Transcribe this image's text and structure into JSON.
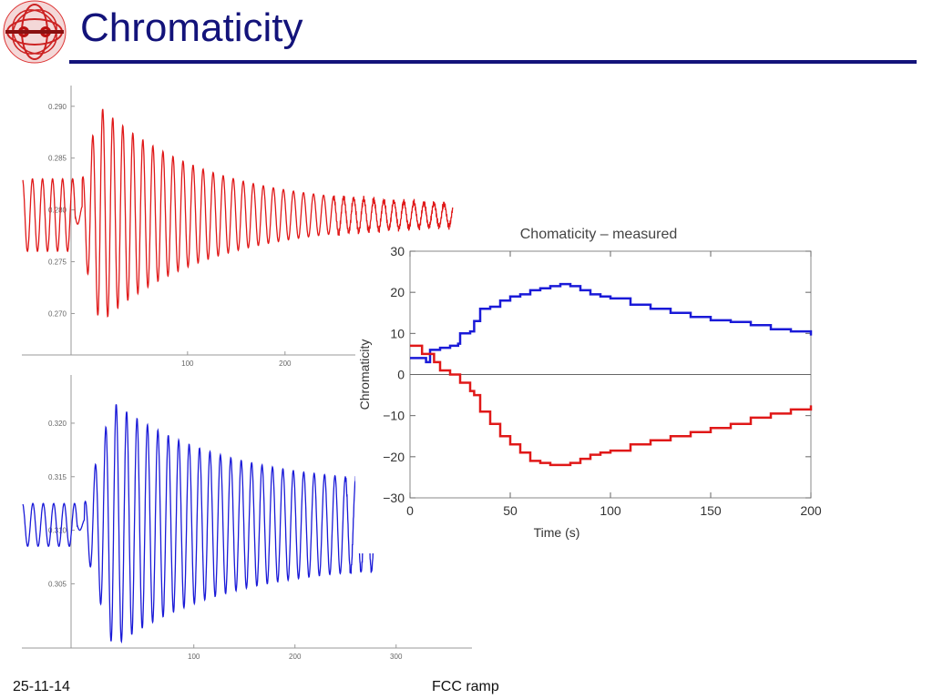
{
  "slide": {
    "title": "Chromaticity",
    "footer_date": "25-11-14",
    "footer_title": "FCC ramp"
  },
  "colors": {
    "title": "#13137a",
    "red_series": "#e01818",
    "blue_series": "#1a1ad8",
    "axis": "#999999"
  },
  "chart_data": [
    {
      "type": "line",
      "name": "horizontal-tune-oscillation",
      "color": "#e01818",
      "ylim": [
        0.266,
        0.292
      ],
      "xlim": [
        -70,
        375
      ],
      "y_ticks": [
        "0.290",
        "0.285",
        "0.280",
        "0.275",
        "0.270"
      ],
      "y_tick_values": [
        0.29,
        0.285,
        0.28,
        0.275,
        0.27
      ],
      "x_ticks": [
        "100",
        "200"
      ],
      "x_tick_values": [
        100,
        200
      ],
      "series": [
        {
          "name": "tune",
          "mean": 0.2795,
          "pre_amplitude": 0.0035,
          "peak_amplitude": 0.0105,
          "peak_x": 10,
          "end_x": 372,
          "period": 10.3,
          "end_amplitude": 0.0007
        }
      ]
    },
    {
      "type": "line",
      "name": "vertical-tune-oscillation",
      "color": "#1a1ad8",
      "ylim": [
        0.299,
        0.3245
      ],
      "xlim": [
        -70,
        375
      ],
      "y_ticks": [
        "0.320",
        "0.315",
        "0.310",
        "0.305"
      ],
      "y_tick_values": [
        0.32,
        0.315,
        0.31,
        0.305
      ],
      "x_ticks": [
        "100",
        "200",
        "300"
      ],
      "x_tick_values": [
        100,
        200,
        300
      ],
      "series": [
        {
          "name": "tune",
          "mean": 0.3105,
          "pre_amplitude": 0.002,
          "peak_amplitude": 0.0115,
          "peak_x": 20,
          "end_x": 280,
          "period": 10.3,
          "end_amplitude": 0.0035
        }
      ]
    },
    {
      "type": "line",
      "name": "chromaticity-measured",
      "title": "Chomaticity – measured",
      "xlabel": "Time (s)",
      "ylabel": "Chromaticity",
      "xlim": [
        0,
        200
      ],
      "ylim": [
        -30,
        30
      ],
      "x_ticks": [
        "0",
        "50",
        "100",
        "150",
        "200"
      ],
      "x_tick_values": [
        0,
        50,
        100,
        150,
        200
      ],
      "y_ticks": [
        "30",
        "20",
        "10",
        "0",
        "−10",
        "−20",
        "−30"
      ],
      "y_tick_values": [
        30,
        20,
        10,
        0,
        -10,
        -20,
        -30
      ],
      "series": [
        {
          "name": "blue",
          "color": "#1a1ad8",
          "x": [
            0,
            5,
            8,
            10,
            15,
            20,
            24,
            25,
            30,
            32,
            35,
            40,
            45,
            50,
            55,
            60,
            65,
            70,
            75,
            80,
            85,
            90,
            95,
            100,
            110,
            120,
            130,
            140,
            150,
            160,
            170,
            180,
            190,
            200
          ],
          "y": [
            4,
            4,
            3,
            6,
            6.5,
            7,
            7.5,
            10,
            10.5,
            13,
            16,
            16.5,
            18,
            19,
            19.5,
            20.5,
            21,
            21.5,
            22,
            21.5,
            20.5,
            19.5,
            19,
            18.5,
            17,
            16,
            15,
            14,
            13.2,
            12.8,
            12,
            11,
            10.5,
            9.5
          ]
        },
        {
          "name": "red",
          "color": "#e01818",
          "x": [
            0,
            5,
            6,
            10,
            12,
            15,
            20,
            25,
            30,
            32,
            35,
            40,
            45,
            50,
            55,
            60,
            65,
            70,
            75,
            80,
            85,
            90,
            95,
            100,
            110,
            120,
            130,
            140,
            150,
            160,
            170,
            180,
            190,
            200
          ],
          "y": [
            7,
            7,
            5,
            5,
            3,
            1,
            0,
            -2,
            -4,
            -5,
            -9,
            -12,
            -15,
            -17,
            -19,
            -21,
            -21.5,
            -22,
            -22,
            -21.5,
            -20.5,
            -19.5,
            -19,
            -18.5,
            -17,
            -16,
            -15,
            -14,
            -13,
            -12,
            -10.5,
            -9.5,
            -8.5,
            -7.5
          ]
        }
      ]
    }
  ]
}
